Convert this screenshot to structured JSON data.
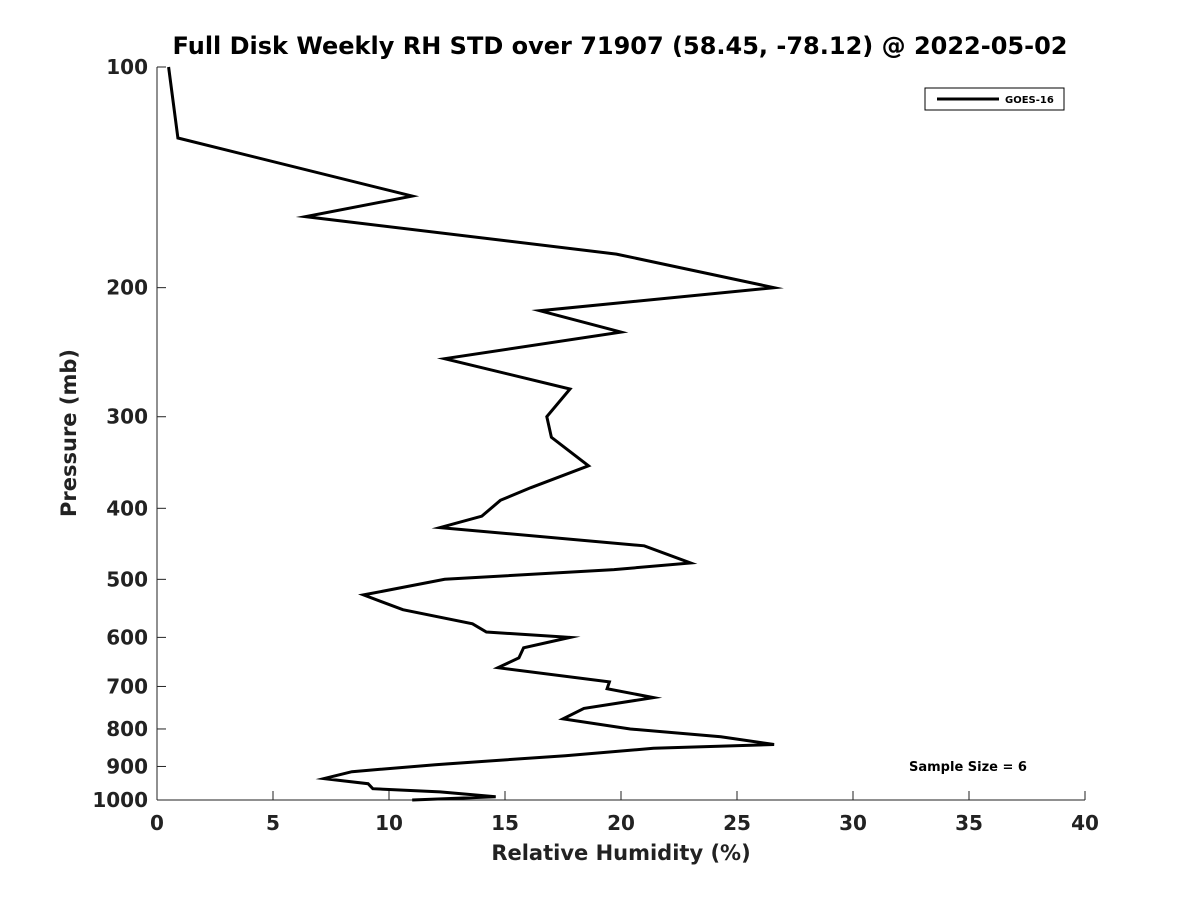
{
  "chart_data": {
    "type": "line",
    "title": "Full Disk Weekly RH STD over 71907 (58.45, -78.12) @ 2022-05-02",
    "xlabel": "Relative Humidity (%)",
    "ylabel": "Pressure (mb)",
    "xlim": [
      0,
      40
    ],
    "ylim": [
      100,
      1000
    ],
    "yscale": "log",
    "y_reversed": true,
    "grid": false,
    "x_ticks": [
      0,
      5,
      10,
      15,
      20,
      25,
      30,
      35,
      40
    ],
    "x_tick_labels": [
      "0",
      "5",
      "10",
      "15",
      "20",
      "25",
      "30",
      "35",
      "40"
    ],
    "y_ticks": [
      100,
      200,
      300,
      400,
      500,
      600,
      700,
      800,
      900,
      1000
    ],
    "y_tick_labels": [
      "100",
      "200",
      "300",
      "400",
      "500",
      "600",
      "700",
      "800",
      "900",
      "1000"
    ],
    "legend_position": "top-right",
    "series": [
      {
        "name": "GOES-16",
        "color": "#000000",
        "x": [
          0.5,
          0.9,
          11.0,
          6.4,
          19.8,
          26.6,
          16.5,
          20.0,
          12.4,
          17.8,
          16.8,
          17.0,
          18.6,
          16.1,
          14.8,
          14.0,
          12.2,
          21.0,
          23.0,
          19.7,
          12.4,
          8.9,
          10.6,
          13.6,
          14.2,
          17.8,
          15.8,
          15.6,
          14.7,
          19.5,
          19.4,
          21.4,
          18.4,
          17.5,
          20.4,
          24.3,
          26.6,
          21.4,
          17.6,
          12.0,
          8.4,
          7.2,
          9.1,
          9.3,
          12.2,
          14.6,
          11.0
        ],
        "y": [
          100,
          125,
          150,
          160,
          180,
          200,
          215,
          230,
          250,
          275,
          300,
          320,
          350,
          375,
          390,
          410,
          425,
          450,
          475,
          485,
          500,
          525,
          550,
          575,
          590,
          600,
          620,
          640,
          660,
          690,
          705,
          725,
          750,
          775,
          800,
          820,
          840,
          850,
          870,
          895,
          915,
          935,
          950,
          965,
          975,
          990,
          1000
        ]
      }
    ],
    "annotations": [
      {
        "text": "Sample Size = 6",
        "position": "bottom-right"
      }
    ]
  }
}
